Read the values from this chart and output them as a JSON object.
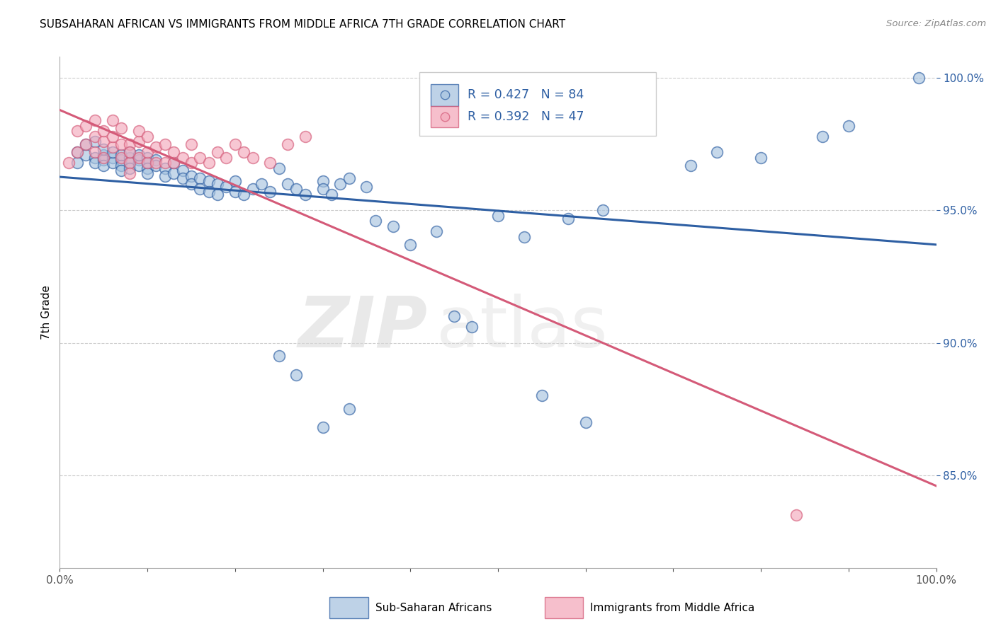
{
  "title": "SUBSAHARAN AFRICAN VS IMMIGRANTS FROM MIDDLE AFRICA 7TH GRADE CORRELATION CHART",
  "source": "Source: ZipAtlas.com",
  "ylabel": "7th Grade",
  "ytick_values": [
    1.0,
    0.95,
    0.9,
    0.85
  ],
  "xlim": [
    0.0,
    1.0
  ],
  "ylim": [
    0.815,
    1.008
  ],
  "blue_R": 0.427,
  "blue_N": 84,
  "pink_R": 0.392,
  "pink_N": 47,
  "blue_color": "#A8C4E0",
  "pink_color": "#F4AABC",
  "trendline_blue": "#2E5FA3",
  "trendline_pink": "#D45A78",
  "legend_label_blue": "Sub-Saharan Africans",
  "legend_label_pink": "Immigrants from Middle Africa",
  "watermark_zip": "ZIP",
  "watermark_atlas": "atlas",
  "blue_scatter_x": [
    0.02,
    0.02,
    0.03,
    0.03,
    0.04,
    0.04,
    0.04,
    0.05,
    0.05,
    0.05,
    0.05,
    0.06,
    0.06,
    0.06,
    0.07,
    0.07,
    0.07,
    0.07,
    0.08,
    0.08,
    0.08,
    0.08,
    0.09,
    0.09,
    0.09,
    0.1,
    0.1,
    0.1,
    0.1,
    0.11,
    0.11,
    0.12,
    0.12,
    0.13,
    0.13,
    0.14,
    0.14,
    0.15,
    0.15,
    0.16,
    0.16,
    0.17,
    0.17,
    0.18,
    0.18,
    0.19,
    0.2,
    0.2,
    0.21,
    0.22,
    0.23,
    0.24,
    0.25,
    0.26,
    0.27,
    0.28,
    0.3,
    0.3,
    0.31,
    0.32,
    0.33,
    0.35,
    0.36,
    0.38,
    0.4,
    0.43,
    0.45,
    0.47,
    0.5,
    0.53,
    0.58,
    0.62,
    0.25,
    0.27,
    0.3,
    0.33,
    0.55,
    0.6,
    0.72,
    0.75,
    0.8,
    0.87,
    0.9,
    0.98
  ],
  "blue_scatter_y": [
    0.968,
    0.972,
    0.971,
    0.975,
    0.97,
    0.968,
    0.976,
    0.971,
    0.969,
    0.973,
    0.967,
    0.97,
    0.968,
    0.972,
    0.969,
    0.971,
    0.967,
    0.965,
    0.97,
    0.968,
    0.966,
    0.972,
    0.969,
    0.967,
    0.971,
    0.97,
    0.968,
    0.966,
    0.964,
    0.969,
    0.967,
    0.966,
    0.963,
    0.968,
    0.964,
    0.965,
    0.962,
    0.963,
    0.96,
    0.962,
    0.958,
    0.961,
    0.957,
    0.96,
    0.956,
    0.959,
    0.961,
    0.957,
    0.956,
    0.958,
    0.96,
    0.957,
    0.966,
    0.96,
    0.958,
    0.956,
    0.961,
    0.958,
    0.956,
    0.96,
    0.962,
    0.959,
    0.946,
    0.944,
    0.937,
    0.942,
    0.91,
    0.906,
    0.948,
    0.94,
    0.947,
    0.95,
    0.895,
    0.888,
    0.868,
    0.875,
    0.88,
    0.87,
    0.967,
    0.972,
    0.97,
    0.978,
    0.982,
    1.0
  ],
  "pink_scatter_x": [
    0.01,
    0.02,
    0.02,
    0.03,
    0.03,
    0.04,
    0.04,
    0.04,
    0.05,
    0.05,
    0.05,
    0.06,
    0.06,
    0.06,
    0.07,
    0.07,
    0.07,
    0.08,
    0.08,
    0.08,
    0.09,
    0.09,
    0.09,
    0.1,
    0.1,
    0.1,
    0.11,
    0.11,
    0.12,
    0.12,
    0.13,
    0.13,
    0.14,
    0.15,
    0.15,
    0.16,
    0.17,
    0.18,
    0.19,
    0.2,
    0.21,
    0.22,
    0.24,
    0.26,
    0.28,
    0.08,
    0.84
  ],
  "pink_scatter_y": [
    0.968,
    0.972,
    0.98,
    0.975,
    0.982,
    0.972,
    0.978,
    0.984,
    0.97,
    0.976,
    0.98,
    0.974,
    0.978,
    0.984,
    0.97,
    0.975,
    0.981,
    0.968,
    0.975,
    0.972,
    0.97,
    0.976,
    0.98,
    0.968,
    0.972,
    0.978,
    0.968,
    0.974,
    0.968,
    0.975,
    0.968,
    0.972,
    0.97,
    0.968,
    0.975,
    0.97,
    0.968,
    0.972,
    0.97,
    0.975,
    0.972,
    0.97,
    0.968,
    0.975,
    0.978,
    0.964,
    0.835
  ]
}
